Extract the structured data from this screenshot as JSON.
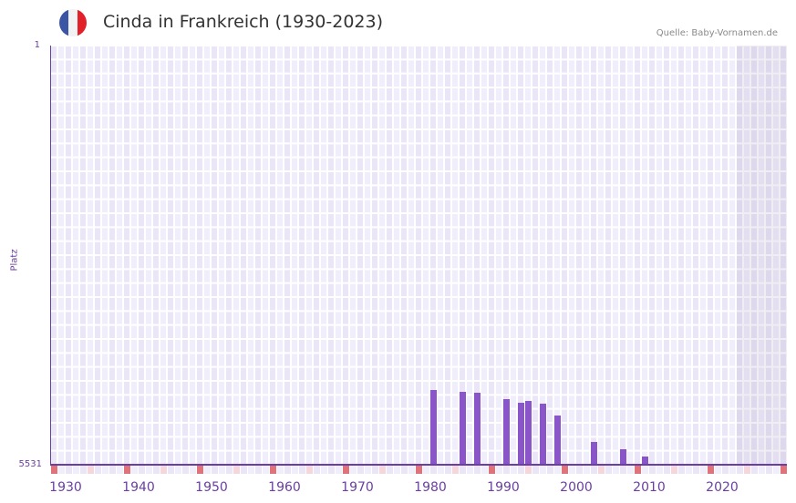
{
  "header": {
    "title": "Cinda in Frankreich (1930-2023)",
    "source": "Quelle: Baby-Vornamen.de",
    "flag_icon": "france-flag-icon",
    "flag_colors": [
      "#3b55a5",
      "#f2f2f4",
      "#e1202a"
    ]
  },
  "colors": {
    "bar": "#8a55c8",
    "axis": "#6a3fa0",
    "marker_decade": "#e2727a",
    "marker_half": "#f5d6dd",
    "grid_a": "#f1eefb",
    "grid_b": "#ebe6f7"
  },
  "chart_data": {
    "type": "bar",
    "title": "Cinda in Frankreich (1930-2023)",
    "xlabel": "",
    "ylabel": "Platz",
    "y_inverted": true,
    "ylim": [
      1,
      5531
    ],
    "yticks": [
      "1",
      "5531"
    ],
    "xticks": [
      "1930",
      "1940",
      "1950",
      "1960",
      "1970",
      "1980",
      "1990",
      "2000",
      "2010",
      "2020"
    ],
    "x_range": [
      1928,
      2028
    ],
    "shaded_future_from": 2022,
    "categories": [
      1980,
      1984,
      1986,
      1990,
      1992,
      1993,
      1995,
      1997,
      2002,
      2006,
      2009
    ],
    "values": [
      4545,
      4569,
      4581,
      4665,
      4713,
      4689,
      4725,
      4881,
      5230,
      5326,
      5423
    ],
    "grid": true,
    "legend": null
  },
  "axis": {
    "ylabel": "Platz",
    "ytop": "1",
    "ybottom": "5531"
  }
}
